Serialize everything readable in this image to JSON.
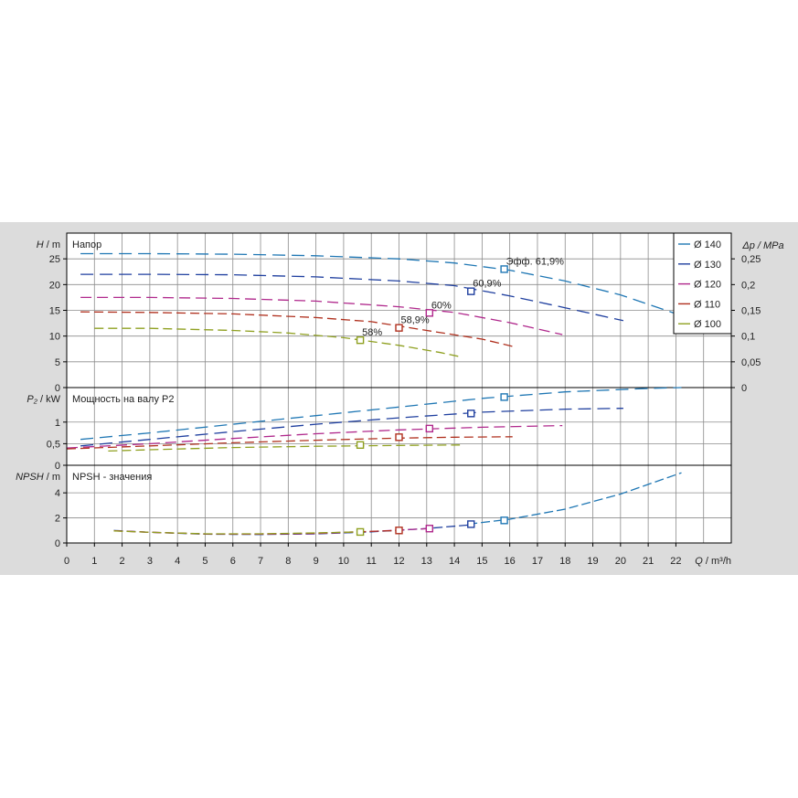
{
  "colors": {
    "background": "#dcdcdc",
    "plot": "#ffffff",
    "grid": "#8c8c8c",
    "axis": "#000000",
    "d140": "#1f77b4",
    "d130": "#1f3f9f",
    "d120": "#b0288c",
    "d110": "#b0301e",
    "d100": "#8fa020"
  },
  "chart_data": [
    {
      "type": "line",
      "panel": "head",
      "label": "Напор",
      "ylabel_left": "H / m",
      "ylabel_right": "Δp / MPa",
      "ylim": [
        0,
        30
      ],
      "yticks": [
        "0",
        "5",
        "10",
        "15",
        "20",
        "25"
      ],
      "yticks_right": [
        "0",
        "0,05",
        "0,1",
        "0,15",
        "0,2",
        "0,25"
      ],
      "series": [
        {
          "name": "Ø 140",
          "color": "#1f77b4",
          "x": [
            0.5,
            3,
            6,
            9,
            12,
            14,
            16,
            18,
            20,
            22.3
          ],
          "y": [
            26,
            26,
            25.9,
            25.6,
            25,
            24.2,
            22.8,
            20.7,
            18,
            13.8
          ],
          "bep": {
            "x": 15.8,
            "y": 23,
            "label": "Эфф.  61,9%"
          }
        },
        {
          "name": "Ø 130",
          "color": "#1f3f9f",
          "x": [
            0.5,
            3,
            6,
            9,
            12,
            14,
            16,
            18,
            20.1
          ],
          "y": [
            22,
            22,
            21.9,
            21.5,
            20.7,
            19.8,
            17.8,
            15.5,
            13
          ],
          "bep": {
            "x": 14.6,
            "y": 18.7,
            "label": "60,9%"
          }
        },
        {
          "name": "Ø 120",
          "color": "#b0288c",
          "x": [
            0.5,
            3,
            6,
            9,
            12,
            14,
            16,
            17.9
          ],
          "y": [
            17.5,
            17.5,
            17.3,
            16.8,
            15.7,
            14.6,
            12.6,
            10.3
          ],
          "bep": {
            "x": 13.1,
            "y": 14.5,
            "label": "60%"
          }
        },
        {
          "name": "Ø 110",
          "color": "#b0301e",
          "x": [
            0.5,
            3,
            6,
            9,
            11,
            13,
            15,
            16.1
          ],
          "y": [
            14.7,
            14.6,
            14.3,
            13.6,
            12.8,
            11.1,
            9.4,
            8
          ],
          "bep": {
            "x": 12,
            "y": 11.6,
            "label": "58,9%"
          }
        },
        {
          "name": "Ø 100",
          "color": "#8fa020",
          "x": [
            1,
            3,
            6,
            8,
            10,
            12,
            13.5,
            14.2
          ],
          "y": [
            11.5,
            11.5,
            11.1,
            10.6,
            9.7,
            8.2,
            6.8,
            6
          ],
          "bep": {
            "x": 10.6,
            "y": 9.2,
            "label": "58%"
          }
        }
      ]
    },
    {
      "type": "line",
      "panel": "power",
      "label": "Мощность на валу P2",
      "ylabel_left": "P₂ / kW",
      "ylim": [
        0,
        1.8
      ],
      "yticks": [
        "0",
        "0,5",
        "1"
      ],
      "series": [
        {
          "name": "Ø 140",
          "color": "#1f77b4",
          "x": [
            0.5,
            3,
            6,
            9,
            12,
            15,
            18,
            21,
            22.2
          ],
          "y": [
            0.6,
            0.75,
            0.95,
            1.15,
            1.35,
            1.55,
            1.7,
            1.78,
            1.8
          ],
          "bep": {
            "x": 15.8,
            "y": 1.58
          }
        },
        {
          "name": "Ø 130",
          "color": "#1f3f9f",
          "x": [
            0.5,
            3,
            6,
            9,
            12,
            15,
            18,
            20.1
          ],
          "y": [
            0.45,
            0.6,
            0.78,
            0.95,
            1.1,
            1.23,
            1.3,
            1.32
          ],
          "bep": {
            "x": 14.6,
            "y": 1.2
          }
        },
        {
          "name": "Ø 120",
          "color": "#b0288c",
          "x": [
            0,
            3,
            6,
            9,
            12,
            15,
            17.9
          ],
          "y": [
            0.4,
            0.5,
            0.62,
            0.73,
            0.82,
            0.88,
            0.92
          ],
          "bep": {
            "x": 13.1,
            "y": 0.85
          }
        },
        {
          "name": "Ø 110",
          "color": "#b0301e",
          "x": [
            0,
            3,
            6,
            9,
            12,
            14,
            16.1
          ],
          "y": [
            0.38,
            0.45,
            0.52,
            0.58,
            0.63,
            0.65,
            0.66
          ],
          "bep": {
            "x": 12,
            "y": 0.65
          }
        },
        {
          "name": "Ø 100",
          "color": "#8fa020",
          "x": [
            1.5,
            3,
            6,
            9,
            12,
            14.2
          ],
          "y": [
            0.33,
            0.36,
            0.41,
            0.44,
            0.46,
            0.47
          ],
          "bep": {
            "x": 10.6,
            "y": 0.47
          }
        }
      ]
    },
    {
      "type": "line",
      "panel": "npsh",
      "label": "NPSH - значения",
      "ylabel_left": "NPSH / m",
      "ylim": [
        0,
        6.2
      ],
      "yticks": [
        "0",
        "2",
        "4"
      ],
      "series": [
        {
          "name": "Ø 140",
          "color": "#1f77b4",
          "x": [
            14.5,
            16,
            18,
            20,
            22.2
          ],
          "y": [
            1.5,
            1.9,
            2.7,
            3.9,
            5.6
          ],
          "bep": {
            "x": 15.8,
            "y": 1.8
          }
        },
        {
          "name": "Ø 130",
          "color": "#1f3f9f",
          "x": [
            1.7,
            3,
            5,
            7,
            9,
            11,
            13,
            14.6
          ],
          "y": [
            1.0,
            0.85,
            0.7,
            0.68,
            0.72,
            0.88,
            1.15,
            1.45
          ],
          "bep": {
            "x": 14.6,
            "y": 1.5
          }
        },
        {
          "name": "Ø 120",
          "color": "#b0288c",
          "x": [
            1.7,
            3,
            5,
            7,
            9,
            11,
            13.1
          ],
          "y": [
            0.98,
            0.85,
            0.72,
            0.7,
            0.75,
            0.92,
            1.15
          ],
          "bep": {
            "x": 13.1,
            "y": 1.15
          }
        },
        {
          "name": "Ø 110",
          "color": "#b0301e",
          "x": [
            1.7,
            3,
            5,
            7,
            9,
            12
          ],
          "y": [
            0.97,
            0.85,
            0.72,
            0.72,
            0.78,
            1.0
          ],
          "bep": {
            "x": 12,
            "y": 1.0
          }
        },
        {
          "name": "Ø 100",
          "color": "#8fa020",
          "x": [
            1.7,
            3,
            5,
            7,
            9,
            10.6
          ],
          "y": [
            0.96,
            0.85,
            0.73,
            0.73,
            0.8,
            0.88
          ],
          "bep": {
            "x": 10.6,
            "y": 0.88
          }
        }
      ],
      "xlabel": "Q / m³/h",
      "xlim": [
        0,
        24
      ],
      "xticks": [
        "0",
        "1",
        "2",
        "3",
        "4",
        "5",
        "6",
        "7",
        "8",
        "9",
        "10",
        "11",
        "12",
        "13",
        "14",
        "15",
        "16",
        "17",
        "18",
        "19",
        "20",
        "21",
        "22"
      ]
    }
  ],
  "legend": {
    "placement": "top-right",
    "items": [
      {
        "label": "Ø 140",
        "color": "#1f77b4"
      },
      {
        "label": "Ø 130",
        "color": "#1f3f9f"
      },
      {
        "label": "Ø 120",
        "color": "#b0288c"
      },
      {
        "label": "Ø 110",
        "color": "#b0301e"
      },
      {
        "label": "Ø 100",
        "color": "#8fa020"
      }
    ]
  }
}
